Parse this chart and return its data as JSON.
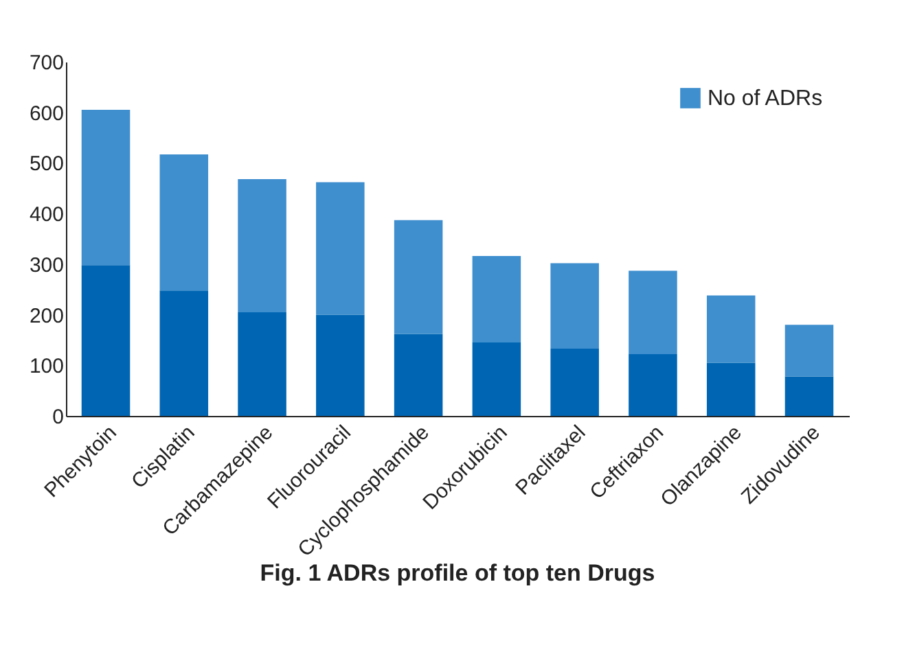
{
  "chart_data": {
    "type": "bar",
    "title": "Fig. 1 ADRs profile of top ten Drugs",
    "stacked": true,
    "categories": [
      "Phenytoin",
      "Cisplatin",
      "Carbamazepine",
      "Fluorouracil",
      "Cyclophosphamide",
      "Doxorubicin",
      "Paclitaxel",
      "Ceftriaxon",
      "Olanzapine",
      "Zidovudine"
    ],
    "series": [
      {
        "color": "#0066b3",
        "values": [
          298,
          248,
          205,
          200,
          162,
          145,
          133,
          122,
          105,
          78
        ]
      },
      {
        "name": "No of ADRs",
        "color": "#3f8fcf",
        "values": [
          307,
          269,
          263,
          262,
          225,
          171,
          169,
          165,
          133,
          102
        ]
      }
    ],
    "ylim": [
      0,
      700
    ],
    "yticks": [
      0,
      100,
      200,
      300,
      400,
      500,
      600,
      700
    ],
    "grid": false,
    "legend": "top right"
  }
}
